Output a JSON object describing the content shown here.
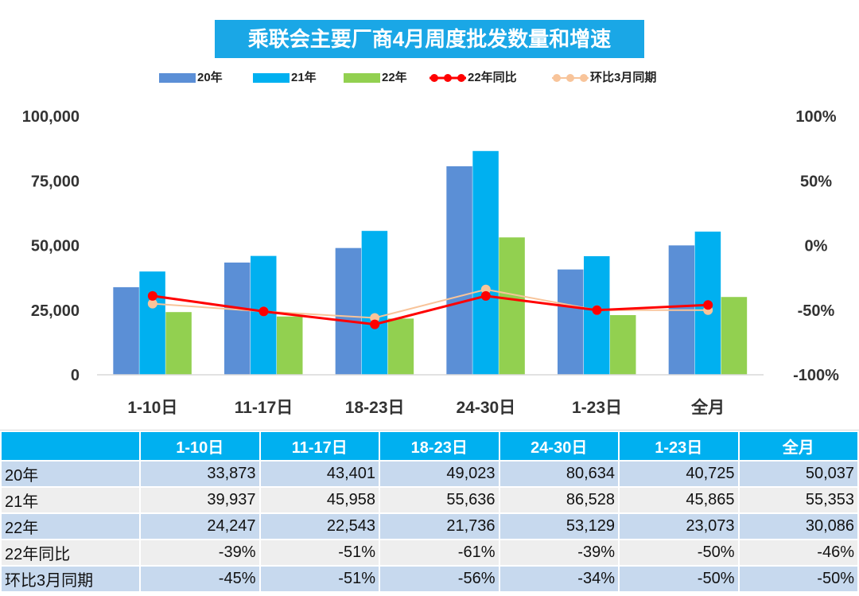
{
  "chart_data": {
    "type": "bar",
    "title": "乘联会主要厂商4月周度批发数量和增速",
    "categories": [
      "1-10日",
      "11-17日",
      "18-23日",
      "24-30日",
      "1-23日",
      "全月"
    ],
    "series": [
      {
        "name": "20年",
        "type": "bar",
        "axis": "left",
        "color": "#5b8fd6",
        "values": [
          33873,
          43401,
          49023,
          80634,
          40725,
          50037
        ]
      },
      {
        "name": "21年",
        "type": "bar",
        "axis": "left",
        "color": "#00b0f0",
        "values": [
          39937,
          45958,
          55636,
          86528,
          45865,
          55353
        ]
      },
      {
        "name": "22年",
        "type": "bar",
        "axis": "left",
        "color": "#92d050",
        "values": [
          24247,
          22543,
          21736,
          53129,
          23073,
          30086
        ]
      },
      {
        "name": "22年同比",
        "type": "line",
        "axis": "right",
        "color": "#ff0000",
        "values": [
          -39,
          -51,
          -61,
          -39,
          -50,
          -46
        ]
      },
      {
        "name": "环比3月同期",
        "type": "line",
        "axis": "right",
        "color": "#f8c49a",
        "values": [
          -45,
          -51,
          -56,
          -34,
          -50,
          -50
        ]
      }
    ],
    "y_left": {
      "ylim": [
        0,
        100000
      ],
      "ticks": [
        "0",
        "25,000",
        "50,000",
        "75,000",
        "100,000"
      ]
    },
    "y_right": {
      "ylim": [
        -100,
        100
      ],
      "ticks": [
        "-100%",
        "-50%",
        "0%",
        "50%",
        "100%"
      ]
    },
    "grid": false,
    "legend_position": "top"
  },
  "table": {
    "headers": [
      "",
      "1-10日",
      "11-17日",
      "18-23日",
      "24-30日",
      "1-23日",
      "全月"
    ],
    "rows": [
      {
        "label": "20年",
        "cells": [
          "33,873",
          "43,401",
          "49,023",
          "80,634",
          "40,725",
          "50,037"
        ]
      },
      {
        "label": "21年",
        "cells": [
          "39,937",
          "45,958",
          "55,636",
          "86,528",
          "45,865",
          "55,353"
        ]
      },
      {
        "label": "22年",
        "cells": [
          "24,247",
          "22,543",
          "21,736",
          "53,129",
          "23,073",
          "30,086"
        ]
      },
      {
        "label": "22年同比",
        "cells": [
          "-39%",
          "-51%",
          "-61%",
          "-39%",
          "-50%",
          "-46%"
        ]
      },
      {
        "label": "环比3月同期",
        "cells": [
          "-45%",
          "-51%",
          "-56%",
          "-34%",
          "-50%",
          "-50%"
        ]
      }
    ]
  }
}
